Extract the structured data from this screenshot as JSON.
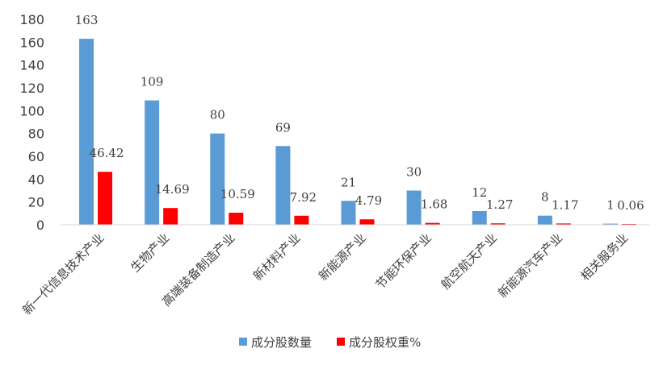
{
  "chart_data": {
    "type": "bar",
    "categories": [
      "新一代信息技术产业",
      "生物产业",
      "高端装备制造产业",
      "新材料产业",
      "新能源产业",
      "节能环保产业",
      "航空航天产业",
      "新能源汽车产业",
      "相关服务业"
    ],
    "series": [
      {
        "name": "成分股数量",
        "values": [
          163,
          109,
          80,
          69,
          21,
          30,
          12,
          8,
          1
        ],
        "labels": [
          "163",
          "109",
          "80",
          "69",
          "21",
          "30",
          "12",
          "8",
          "1"
        ],
        "color": "#5b9bd5"
      },
      {
        "name": "成分股权重%",
        "values": [
          46.42,
          14.69,
          10.59,
          7.92,
          4.79,
          1.68,
          1.27,
          1.17,
          0.06
        ],
        "labels": [
          "46.42",
          "14.69",
          "10.59",
          "7.92",
          "4.79",
          "1.68",
          "1.27",
          "1.17",
          "0.06"
        ],
        "color": "#ff0000"
      }
    ],
    "yticks": [
      "0",
      "20",
      "40",
      "60",
      "80",
      "100",
      "120",
      "140",
      "160",
      "180"
    ],
    "ylim": [
      0,
      180
    ],
    "legend_position": "bottom",
    "grid": false
  }
}
